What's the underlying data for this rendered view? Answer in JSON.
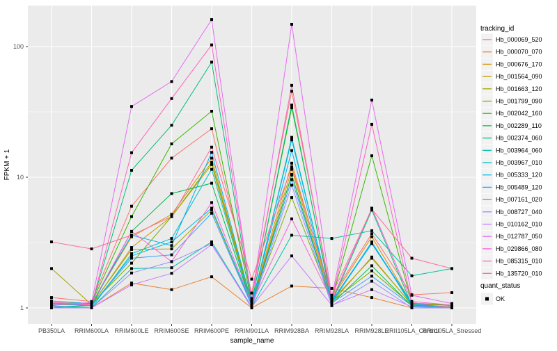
{
  "axes": {
    "y_title": "FPKM + 1",
    "x_title": "sample_name",
    "y_tick_labels": [
      "100",
      "10",
      "1"
    ]
  },
  "legend": {
    "color_title": "tracking_id",
    "shape_title": "quant_status",
    "shape_item_label": "OK"
  },
  "colors": {
    "panel_background": "#EBEBEB",
    "grid_line": "#FFFFFF",
    "legend_key_background": "#F2F2F2",
    "tick_text": "#4D4D4D",
    "point": "#000000"
  },
  "chart_data": {
    "type": "line",
    "title": "",
    "xlabel": "sample_name",
    "ylabel": "FPKM + 1",
    "yscale": "log10",
    "ylim": [
      0.75,
      206
    ],
    "y_major_ticks": [
      1,
      10,
      100
    ],
    "y_minor_gridlines": [
      3.162,
      31.62
    ],
    "grid": "on",
    "legend_position": "right",
    "point_shape": "filled-black-square",
    "x_categories": [
      "PB350LA",
      "RRIM600LA",
      "RRIM600LE",
      "RRIM600SE",
      "RRIM600PE",
      "RRIM901LA",
      "RRIM928BA",
      "RRIM928LA",
      "RRIM928LE",
      "RRII105LA_Control",
      "RRII105LA_Stressed"
    ],
    "series": [
      {
        "name": "Hb_000069_520",
        "color": "#F8766D",
        "values": [
          1.2,
          1.12,
          6.0,
          14.0,
          23.5,
          1.3,
          45.5,
          1.22,
          3.7,
          1.26,
          1.31
        ]
      },
      {
        "name": "Hb_000070_070",
        "color": "#EA8331",
        "values": [
          1.0,
          1.0,
          1.55,
          1.38,
          1.73,
          1.0,
          1.47,
          1.41,
          1.2,
          1.0,
          1.0
        ]
      },
      {
        "name": "Hb_000676_170",
        "color": "#D89000",
        "values": [
          1.1,
          1.08,
          3.5,
          5.2,
          14.0,
          1.08,
          12.8,
          1.18,
          3.5,
          1.08,
          1.04
        ]
      },
      {
        "name": "Hb_001564_090",
        "color": "#C09B00",
        "values": [
          1.06,
          1.05,
          2.9,
          5.0,
          12.5,
          1.06,
          11.5,
          1.14,
          2.4,
          1.06,
          1.02
        ]
      },
      {
        "name": "Hb_001663_120",
        "color": "#A3A500",
        "values": [
          2.0,
          1.06,
          2.8,
          2.83,
          5.6,
          1.05,
          10.5,
          1.1,
          2.45,
          1.05,
          1.0
        ]
      },
      {
        "name": "Hb_001799_090",
        "color": "#7CAE00",
        "values": [
          1.08,
          1.07,
          2.2,
          5.0,
          13.0,
          1.08,
          7.0,
          1.12,
          1.92,
          1.05,
          1.02
        ]
      },
      {
        "name": "Hb_002042_160",
        "color": "#39B600",
        "values": [
          1.05,
          1.09,
          5.0,
          18.0,
          32.0,
          1.1,
          34.0,
          1.15,
          14.6,
          1.09,
          1.05
        ]
      },
      {
        "name": "Hb_002289_110",
        "color": "#00BB4E",
        "values": [
          1.02,
          1.04,
          3.85,
          7.5,
          9.0,
          1.05,
          10.4,
          1.08,
          2.1,
          1.03,
          1.0
        ]
      },
      {
        "name": "Hb_002374_060",
        "color": "#00BF7D",
        "values": [
          1.0,
          1.05,
          11.3,
          25.0,
          76.0,
          1.1,
          35.7,
          1.1,
          5.6,
          1.05,
          1.0
        ]
      },
      {
        "name": "Hb_003964_060",
        "color": "#00C1A3",
        "values": [
          1.0,
          1.0,
          2.0,
          2.03,
          3.2,
          1.02,
          3.6,
          3.4,
          3.9,
          1.76,
          2.0
        ]
      },
      {
        "name": "Hb_003967_010",
        "color": "#00BFC4",
        "values": [
          1.04,
          1.0,
          2.6,
          3.4,
          11.5,
          1.04,
          20.2,
          1.09,
          3.2,
          1.04,
          1.0
        ]
      },
      {
        "name": "Hb_005333_120",
        "color": "#00BAE0",
        "values": [
          1.08,
          1.04,
          2.5,
          3.2,
          5.8,
          1.06,
          19.3,
          1.11,
          3.1,
          1.07,
          1.01
        ]
      },
      {
        "name": "Hb_005489_120",
        "color": "#00B0F6",
        "values": [
          1.13,
          1.08,
          3.6,
          3.0,
          15.5,
          1.09,
          16.0,
          1.13,
          3.15,
          1.09,
          1.0
        ]
      },
      {
        "name": "Hb_007161_020",
        "color": "#35A2FF",
        "values": [
          1.09,
          1.04,
          2.4,
          2.55,
          5.3,
          1.04,
          9.6,
          1.09,
          1.75,
          1.04,
          1.0
        ]
      },
      {
        "name": "Hb_008727_040",
        "color": "#9590FF",
        "values": [
          1.0,
          1.0,
          1.85,
          2.26,
          3.1,
          1.0,
          8.7,
          1.04,
          1.6,
          1.0,
          1.0
        ]
      },
      {
        "name": "Hb_010162_010",
        "color": "#C77CFF",
        "values": [
          1.02,
          1.0,
          1.5,
          1.84,
          3.05,
          1.02,
          2.5,
          1.05,
          1.38,
          1.02,
          1.0
        ]
      },
      {
        "name": "Hb_012787_050",
        "color": "#E76BF3",
        "values": [
          1.05,
          1.1,
          34.8,
          54.0,
          161.0,
          1.14,
          148.0,
          1.2,
          39.0,
          1.25,
          1.08
        ]
      },
      {
        "name": "Hb_029866_080",
        "color": "#FA62DB",
        "values": [
          1.1,
          1.07,
          3.85,
          2.26,
          6.4,
          1.08,
          4.8,
          1.14,
          5.8,
          1.12,
          1.05
        ]
      },
      {
        "name": "Hb_085315_010",
        "color": "#FF62BC",
        "values": [
          1.1,
          1.05,
          15.4,
          40.0,
          103.0,
          1.18,
          50.5,
          1.15,
          25.4,
          1.1,
          1.0
        ]
      },
      {
        "name": "Hb_135720_010",
        "color": "#FF6A98",
        "values": [
          3.2,
          2.83,
          3.6,
          5.0,
          17.0,
          1.66,
          12.0,
          1.25,
          5.7,
          2.4,
          2.0
        ]
      }
    ]
  }
}
